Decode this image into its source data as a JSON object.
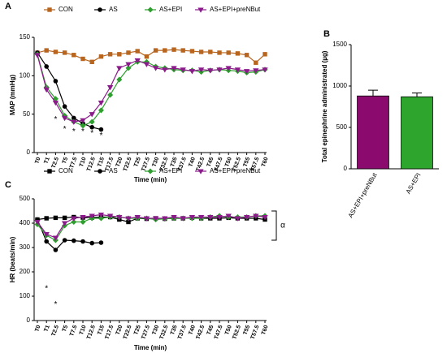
{
  "chart_data": [
    {
      "type": "line",
      "panel": "A",
      "ylabel": "MAP (mmHg)",
      "xlabel": "Time (min)",
      "categories": [
        "T0",
        "T1",
        "T2.5",
        "T5",
        "T7.5",
        "T10",
        "T12.5",
        "T15",
        "T17.5",
        "T20",
        "T22.5",
        "T25",
        "T27.5",
        "T30",
        "T32.5",
        "T35",
        "T37.5",
        "T40",
        "T42.5",
        "T45",
        "T47.5",
        "T50",
        "T52.5",
        "T55",
        "T57.5",
        "T60"
      ],
      "ylim": [
        0,
        150
      ],
      "yticks": [
        0,
        50,
        100,
        150
      ],
      "series": [
        {
          "name": "CON",
          "color": "#b8651e",
          "marker": "square",
          "values": [
            130,
            133,
            131,
            130,
            127,
            122,
            118,
            125,
            128,
            128,
            130,
            132,
            125,
            133,
            133,
            134,
            133,
            132,
            131,
            131,
            130,
            130,
            129,
            127,
            117,
            128
          ]
        },
        {
          "name": "AS",
          "color": "#000000",
          "marker": "circle",
          "values": [
            130,
            112,
            93,
            60,
            45,
            38,
            33,
            30,
            null,
            null,
            null,
            null,
            null,
            null,
            null,
            null,
            null,
            null,
            null,
            null,
            null,
            null,
            null,
            null,
            null,
            null
          ]
        },
        {
          "name": "AS+EPI",
          "color": "#2e9e2e",
          "marker": "diamond",
          "values": [
            128,
            85,
            70,
            48,
            40,
            35,
            40,
            55,
            75,
            95,
            110,
            118,
            118,
            112,
            110,
            108,
            107,
            107,
            105,
            107,
            108,
            107,
            106,
            104,
            105,
            108
          ]
        },
        {
          "name": "AS+EPI+preNBut",
          "color": "#8b1a8b",
          "marker": "triangle",
          "values": [
            127,
            82,
            65,
            45,
            40,
            42,
            50,
            65,
            85,
            110,
            115,
            120,
            115,
            110,
            108,
            110,
            108,
            106,
            108,
            107,
            108,
            110,
            108,
            106,
            107,
            108
          ]
        }
      ],
      "annotations": [
        {
          "text": "*",
          "x": "T2.5",
          "y": 43
        },
        {
          "text": "*",
          "x": "T5",
          "y": 30
        },
        {
          "text": "*",
          "x": "T7.5",
          "y": 27
        },
        {
          "text": "*",
          "x": "T10",
          "y": 27
        },
        {
          "text": "*",
          "x": "T12.5",
          "y": 25
        },
        {
          "text": "*",
          "x": "T15",
          "y": 22
        }
      ]
    },
    {
      "type": "bar",
      "panel": "B",
      "ylabel": "Total epinephrine administrated (µg)",
      "categories": [
        "AS+EPI+preNBut",
        "AS+EPI"
      ],
      "values": [
        880,
        870
      ],
      "errors": [
        70,
        45
      ],
      "colors": [
        "#8b0a6e",
        "#2ea62e"
      ],
      "ylim": [
        0,
        1500
      ],
      "yticks": [
        0,
        500,
        1000,
        1500
      ]
    },
    {
      "type": "line",
      "panel": "C",
      "ylabel": "HR (beats/min)",
      "xlabel": "Time (min)",
      "categories": [
        "T0",
        "T1",
        "T2.5",
        "T5",
        "T7.5",
        "T10",
        "T12.5",
        "T15",
        "T17.5",
        "T20",
        "T22.5",
        "T25",
        "T27.5",
        "T30",
        "T32.5",
        "T35",
        "T37.5",
        "T40",
        "T42.5",
        "T45",
        "T47.5",
        "T50",
        "T52.5",
        "T55",
        "T57.5",
        "T60"
      ],
      "ylim": [
        0,
        500
      ],
      "yticks": [
        0,
        100,
        200,
        300,
        400,
        500
      ],
      "series": [
        {
          "name": "CON",
          "color": "#000000",
          "marker": "square",
          "values": [
            415,
            420,
            422,
            422,
            425,
            423,
            423,
            425,
            425,
            415,
            405,
            420,
            418,
            420,
            418,
            420,
            420,
            422,
            420,
            420,
            420,
            422,
            420,
            420,
            420,
            415
          ]
        },
        {
          "name": "AS",
          "color": "#000000",
          "marker": "circle",
          "values": [
            415,
            325,
            290,
            330,
            328,
            325,
            318,
            320,
            null,
            null,
            null,
            null,
            null,
            null,
            null,
            null,
            null,
            null,
            null,
            null,
            null,
            null,
            null,
            null,
            null,
            null
          ]
        },
        {
          "name": "AS+EPI",
          "color": "#2e9e2e",
          "marker": "diamond",
          "values": [
            395,
            350,
            330,
            390,
            405,
            405,
            420,
            420,
            425,
            425,
            420,
            420,
            420,
            415,
            418,
            420,
            420,
            420,
            420,
            425,
            430,
            425,
            425,
            425,
            430,
            430
          ]
        },
        {
          "name": "AS+EPI+preNBut",
          "color": "#8b1a8b",
          "marker": "triangle",
          "values": [
            405,
            355,
            340,
            400,
            420,
            425,
            430,
            435,
            430,
            425,
            420,
            425,
            420,
            420,
            420,
            425,
            420,
            425,
            425,
            425,
            425,
            430,
            420,
            425,
            430,
            425
          ]
        }
      ],
      "annotations": [
        {
          "text": "*",
          "x": "T1",
          "y": 130
        },
        {
          "text": "*",
          "x": "T2.5",
          "y": 65
        },
        {
          "text": "α",
          "x": "T60",
          "y": 390
        }
      ]
    }
  ]
}
